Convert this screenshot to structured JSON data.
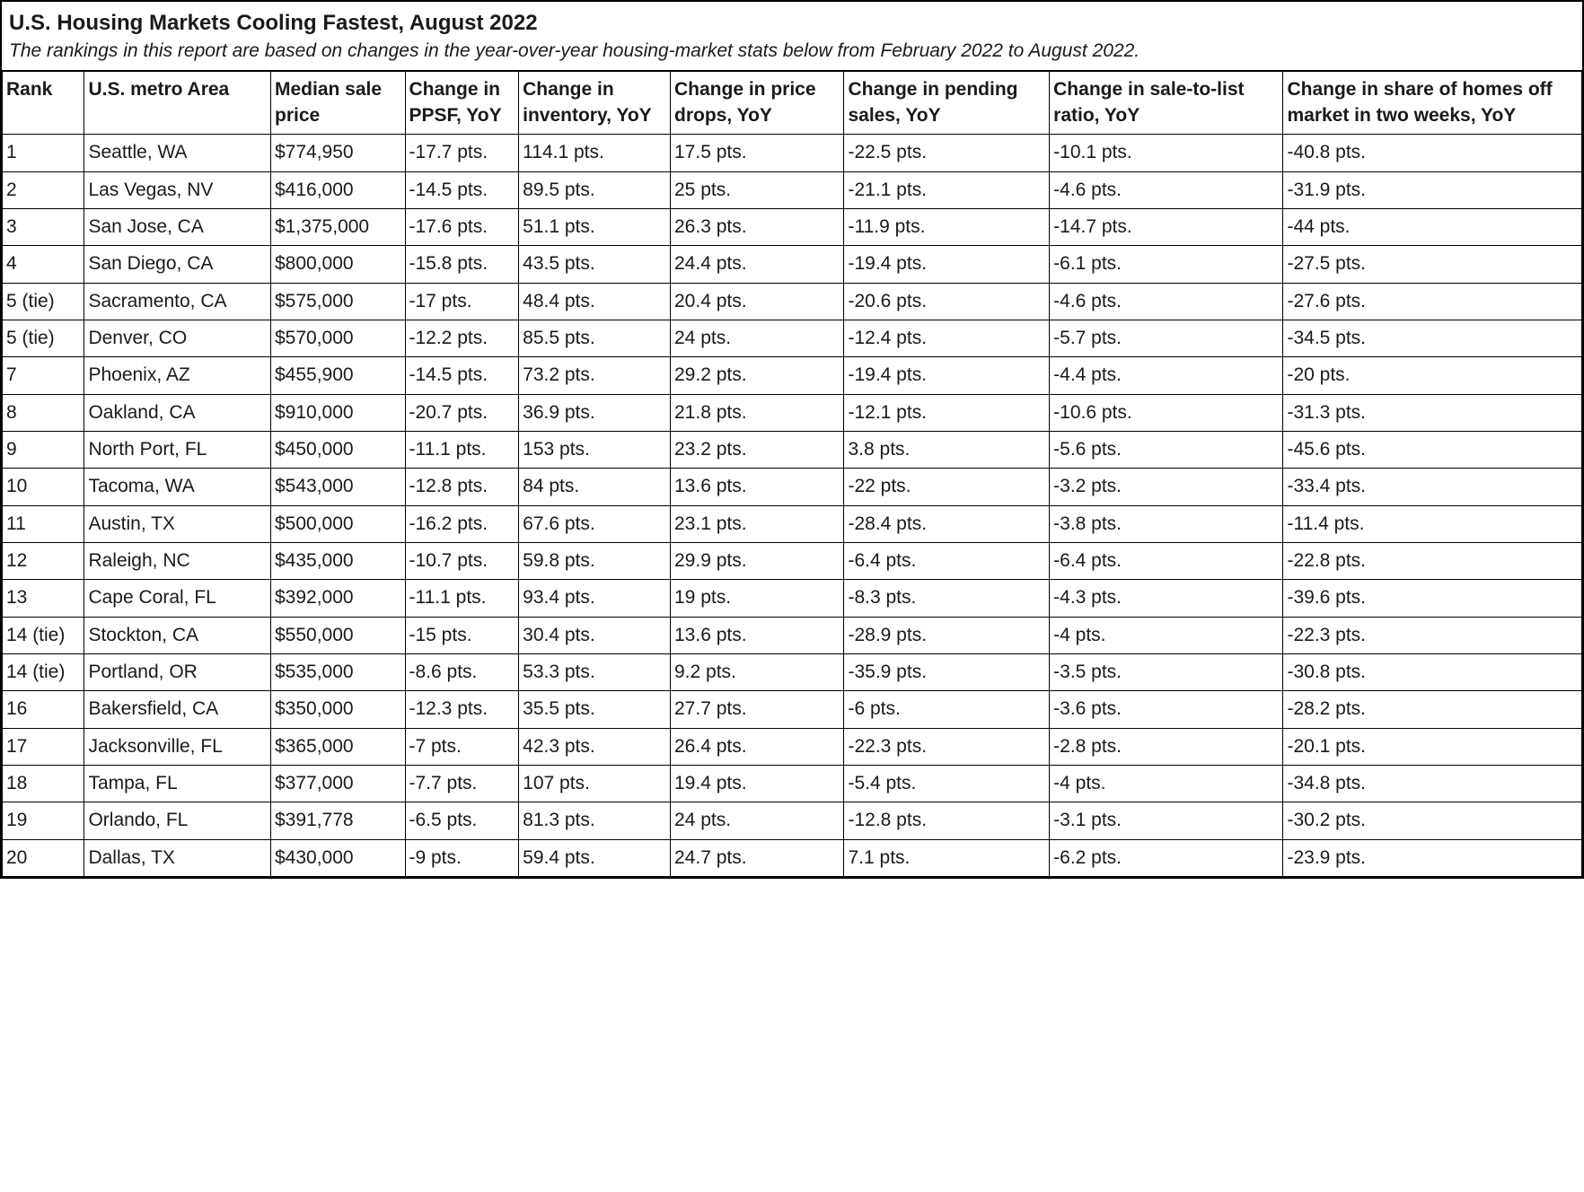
{
  "table": {
    "type": "table",
    "title": "U.S. Housing Markets Cooling Fastest, August 2022",
    "subtitle": "The rankings in this report are based on changes in the year-over-year housing-market stats below from February 2022 to August 2022.",
    "border_color": "#000000",
    "background_color": "#ffffff",
    "text_color": "#1a1a1a",
    "header_fontsize": 21,
    "header_fontweight": 700,
    "body_fontsize": 21,
    "body_fontweight": 400,
    "title_fontsize": 24,
    "subtitle_fontsize": 21,
    "columns": [
      {
        "key": "rank",
        "label": "Rank",
        "width_pct": 5.2
      },
      {
        "key": "metro",
        "label": "U.S. metro Area",
        "width_pct": 11.8
      },
      {
        "key": "price",
        "label": "Median sale price",
        "width_pct": 8.5
      },
      {
        "key": "ppsf",
        "label": "Change in PPSF, YoY",
        "width_pct": 7.2
      },
      {
        "key": "inventory",
        "label": "Change in inventory, YoY",
        "width_pct": 9.6
      },
      {
        "key": "pricedrops",
        "label": "Change in price drops, YoY",
        "width_pct": 11.0
      },
      {
        "key": "pending",
        "label": "Change in pending sales, YoY",
        "width_pct": 13.0
      },
      {
        "key": "saletolist",
        "label": "Change in sale-to-list ratio, YoY",
        "width_pct": 14.8
      },
      {
        "key": "offmarket",
        "label": "Change in share of homes off market in two weeks, YoY",
        "width_pct": 18.9
      }
    ],
    "rows": [
      {
        "rank": "1",
        "metro": "Seattle, WA",
        "price": "$774,950",
        "ppsf": "-17.7 pts.",
        "inventory": "114.1 pts.",
        "pricedrops": "17.5 pts.",
        "pending": "-22.5 pts.",
        "saletolist": "-10.1 pts.",
        "offmarket": "-40.8 pts."
      },
      {
        "rank": "2",
        "metro": "Las Vegas, NV",
        "price": "$416,000",
        "ppsf": "-14.5 pts.",
        "inventory": "89.5 pts.",
        "pricedrops": "25 pts.",
        "pending": "-21.1 pts.",
        "saletolist": "-4.6 pts.",
        "offmarket": "-31.9 pts."
      },
      {
        "rank": "3",
        "metro": "San Jose, CA",
        "price": "$1,375,000",
        "ppsf": "-17.6 pts.",
        "inventory": "51.1 pts.",
        "pricedrops": "26.3 pts.",
        "pending": "-11.9 pts.",
        "saletolist": "-14.7 pts.",
        "offmarket": "-44 pts."
      },
      {
        "rank": "4",
        "metro": "San Diego, CA",
        "price": "$800,000",
        "ppsf": "-15.8 pts.",
        "inventory": "43.5 pts.",
        "pricedrops": "24.4 pts.",
        "pending": "-19.4 pts.",
        "saletolist": "-6.1 pts.",
        "offmarket": "-27.5 pts."
      },
      {
        "rank": "5 (tie)",
        "metro": "Sacramento, CA",
        "price": "$575,000",
        "ppsf": "-17 pts.",
        "inventory": "48.4 pts.",
        "pricedrops": "20.4 pts.",
        "pending": "-20.6 pts.",
        "saletolist": "-4.6 pts.",
        "offmarket": "-27.6 pts."
      },
      {
        "rank": "5 (tie)",
        "metro": "Denver, CO",
        "price": "$570,000",
        "ppsf": "-12.2 pts.",
        "inventory": "85.5 pts.",
        "pricedrops": "24 pts.",
        "pending": "-12.4 pts.",
        "saletolist": "-5.7 pts.",
        "offmarket": "-34.5 pts."
      },
      {
        "rank": "7",
        "metro": "Phoenix, AZ",
        "price": "$455,900",
        "ppsf": "-14.5 pts.",
        "inventory": "73.2 pts.",
        "pricedrops": "29.2 pts.",
        "pending": "-19.4 pts.",
        "saletolist": "-4.4 pts.",
        "offmarket": "-20 pts."
      },
      {
        "rank": "8",
        "metro": "Oakland, CA",
        "price": "$910,000",
        "ppsf": "-20.7 pts.",
        "inventory": "36.9 pts.",
        "pricedrops": "21.8 pts.",
        "pending": "-12.1 pts.",
        "saletolist": "-10.6 pts.",
        "offmarket": "-31.3 pts."
      },
      {
        "rank": "9",
        "metro": "North Port, FL",
        "price": "$450,000",
        "ppsf": "-11.1 pts.",
        "inventory": "153 pts.",
        "pricedrops": "23.2 pts.",
        "pending": "3.8 pts.",
        "saletolist": "-5.6 pts.",
        "offmarket": "-45.6 pts."
      },
      {
        "rank": "10",
        "metro": "Tacoma, WA",
        "price": "$543,000",
        "ppsf": "-12.8 pts.",
        "inventory": "84 pts.",
        "pricedrops": "13.6 pts.",
        "pending": "-22 pts.",
        "saletolist": "-3.2 pts.",
        "offmarket": "-33.4 pts."
      },
      {
        "rank": "11",
        "metro": "Austin, TX",
        "price": "$500,000",
        "ppsf": "-16.2 pts.",
        "inventory": "67.6 pts.",
        "pricedrops": "23.1 pts.",
        "pending": "-28.4 pts.",
        "saletolist": "-3.8 pts.",
        "offmarket": "-11.4 pts."
      },
      {
        "rank": "12",
        "metro": "Raleigh, NC",
        "price": "$435,000",
        "ppsf": "-10.7 pts.",
        "inventory": "59.8 pts.",
        "pricedrops": "29.9 pts.",
        "pending": "-6.4 pts.",
        "saletolist": "-6.4 pts.",
        "offmarket": "-22.8 pts."
      },
      {
        "rank": "13",
        "metro": "Cape Coral, FL",
        "price": "$392,000",
        "ppsf": "-11.1 pts.",
        "inventory": "93.4 pts.",
        "pricedrops": "19 pts.",
        "pending": "-8.3 pts.",
        "saletolist": "-4.3 pts.",
        "offmarket": "-39.6 pts."
      },
      {
        "rank": "14 (tie)",
        "metro": "Stockton, CA",
        "price": "$550,000",
        "ppsf": "-15 pts.",
        "inventory": "30.4 pts.",
        "pricedrops": "13.6 pts.",
        "pending": "-28.9 pts.",
        "saletolist": "-4 pts.",
        "offmarket": "-22.3 pts."
      },
      {
        "rank": "14 (tie)",
        "metro": "Portland, OR",
        "price": "$535,000",
        "ppsf": "-8.6 pts.",
        "inventory": "53.3 pts.",
        "pricedrops": "9.2 pts.",
        "pending": "-35.9 pts.",
        "saletolist": "-3.5 pts.",
        "offmarket": "-30.8 pts."
      },
      {
        "rank": "16",
        "metro": "Bakersfield, CA",
        "price": "$350,000",
        "ppsf": "-12.3 pts.",
        "inventory": "35.5 pts.",
        "pricedrops": "27.7 pts.",
        "pending": "-6 pts.",
        "saletolist": "-3.6 pts.",
        "offmarket": "-28.2 pts."
      },
      {
        "rank": "17",
        "metro": "Jacksonville, FL",
        "price": "$365,000",
        "ppsf": "-7 pts.",
        "inventory": "42.3 pts.",
        "pricedrops": "26.4 pts.",
        "pending": "-22.3 pts.",
        "saletolist": "-2.8 pts.",
        "offmarket": "-20.1 pts."
      },
      {
        "rank": "18",
        "metro": "Tampa, FL",
        "price": "$377,000",
        "ppsf": "-7.7 pts.",
        "inventory": "107 pts.",
        "pricedrops": "19.4 pts.",
        "pending": "-5.4 pts.",
        "saletolist": "-4 pts.",
        "offmarket": "-34.8 pts."
      },
      {
        "rank": "19",
        "metro": "Orlando, FL",
        "price": "$391,778",
        "ppsf": "-6.5 pts.",
        "inventory": "81.3 pts.",
        "pricedrops": "24 pts.",
        "pending": "-12.8 pts.",
        "saletolist": "-3.1 pts.",
        "offmarket": "-30.2 pts."
      },
      {
        "rank": "20",
        "metro": "Dallas, TX",
        "price": "$430,000",
        "ppsf": "-9 pts.",
        "inventory": "59.4 pts.",
        "pricedrops": "24.7 pts.",
        "pending": "7.1 pts.",
        "saletolist": "-6.2 pts.",
        "offmarket": "-23.9 pts."
      }
    ]
  }
}
